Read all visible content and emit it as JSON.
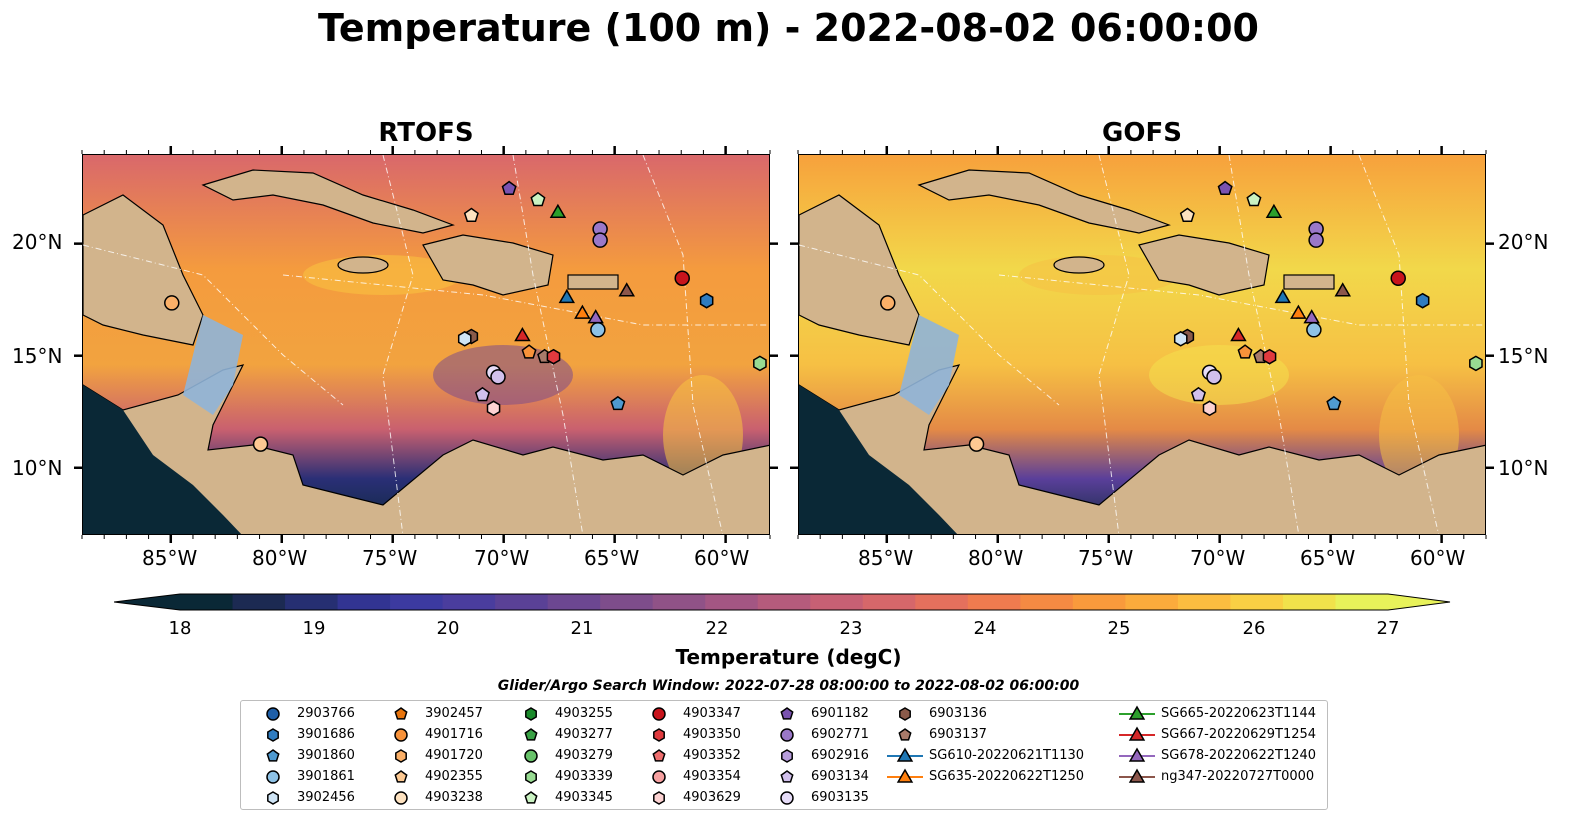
{
  "title": "Temperature (100 m) - 2022-08-02 06:00:00",
  "panels": [
    {
      "title": "RTOFS"
    },
    {
      "title": "GOFS"
    }
  ],
  "axes": {
    "lon_ticks": [
      "85°W",
      "80°W",
      "75°W",
      "70°W",
      "65°W",
      "60°W"
    ],
    "lat_ticks": [
      "20°N",
      "15°N",
      "10°N"
    ]
  },
  "colorbar": {
    "label": "Temperature (degC)",
    "ticks": [
      "18",
      "19",
      "20",
      "21",
      "22",
      "23",
      "24",
      "25",
      "26",
      "27"
    ],
    "colors": [
      "#0a2836",
      "#1c2a52",
      "#262f72",
      "#323492",
      "#3c3aa0",
      "#4a3d9e",
      "#5a4196",
      "#6c4791",
      "#7e4d8b",
      "#905287",
      "#a35683",
      "#b55b7c",
      "#c76074",
      "#d6676a",
      "#e4705d",
      "#ef7b4f",
      "#f58a43",
      "#f99a3c",
      "#fbab3c",
      "#fcbd40",
      "#f9d044",
      "#f1e24b",
      "#e8f25a"
    ]
  },
  "legend": {
    "title": "Glider/Argo Search Window: 2022-07-28 08:00:00 to 2022-08-02 06:00:00",
    "columns": [
      [
        {
          "label": "2903766",
          "marker": "circle",
          "color": "#1f5fa8"
        },
        {
          "label": "3901686",
          "marker": "hexagon",
          "color": "#2f7cc0"
        },
        {
          "label": "3901860",
          "marker": "pentagon",
          "color": "#4f9ad0"
        },
        {
          "label": "3901861",
          "marker": "circle",
          "color": "#8ec2e6"
        },
        {
          "label": "3902456",
          "marker": "hexagon",
          "color": "#cfe4f5"
        }
      ],
      [
        {
          "label": "3902457",
          "marker": "pentagon",
          "color": "#e8740c"
        },
        {
          "label": "4901716",
          "marker": "circle",
          "color": "#f7923a"
        },
        {
          "label": "4901720",
          "marker": "hexagon",
          "color": "#fbb068"
        },
        {
          "label": "4902355",
          "marker": "pentagon",
          "color": "#fdc992"
        },
        {
          "label": "4903238",
          "marker": "circle",
          "color": "#fde2c0"
        }
      ],
      [
        {
          "label": "4903255",
          "marker": "hexagon",
          "color": "#1a8a2b"
        },
        {
          "label": "4903277",
          "marker": "pentagon",
          "color": "#3aa246"
        },
        {
          "label": "4903279",
          "marker": "circle",
          "color": "#68c26a"
        },
        {
          "label": "4903339",
          "marker": "hexagon",
          "color": "#98db92"
        },
        {
          "label": "4903345",
          "marker": "pentagon",
          "color": "#caf2c2"
        }
      ],
      [
        {
          "label": "4903347",
          "marker": "circle",
          "color": "#c8141c"
        },
        {
          "label": "4903350",
          "marker": "hexagon",
          "color": "#e03a3e"
        },
        {
          "label": "4903352",
          "marker": "pentagon",
          "color": "#ee6e6e"
        },
        {
          "label": "4903354",
          "marker": "circle",
          "color": "#f6a0a0"
        },
        {
          "label": "4903629",
          "marker": "hexagon",
          "color": "#fcd2d2"
        }
      ],
      [
        {
          "label": "6901182",
          "marker": "pentagon",
          "color": "#7a52b0"
        },
        {
          "label": "6902771",
          "marker": "circle",
          "color": "#9a78c8"
        },
        {
          "label": "6902916",
          "marker": "hexagon",
          "color": "#b79ddc"
        },
        {
          "label": "6903134",
          "marker": "pentagon",
          "color": "#d1c0ec"
        },
        {
          "label": "6903135",
          "marker": "circle",
          "color": "#e6dcf8"
        }
      ],
      [
        {
          "label": "6903136",
          "marker": "hexagon",
          "color": "#8a5a4a"
        },
        {
          "label": "6903137",
          "marker": "pentagon",
          "color": "#a87a6a"
        },
        {
          "label": "SG610-20220621T1130",
          "marker": "triangle",
          "color": "#1f77b4"
        },
        {
          "label": "SG635-20220622T1250",
          "marker": "triangle",
          "color": "#ff7f0e"
        }
      ],
      [
        {
          "label": "SG665-20220623T1144",
          "marker": "triangle",
          "color": "#2ca02c"
        },
        {
          "label": "SG667-20220629T1254",
          "marker": "triangle",
          "color": "#d62728"
        },
        {
          "label": "SG678-20220622T1240",
          "marker": "triangle",
          "color": "#9467bd"
        },
        {
          "label": "ng347-20220727T0000",
          "marker": "triangle",
          "color": "#8c564b"
        }
      ]
    ]
  },
  "chart_data": {
    "type": "heatmap",
    "title": "Temperature (100 m) - 2022-08-02 06:00:00",
    "variable": "Temperature (degC)",
    "depth": "100 m",
    "datetime": "2022-08-02 06:00:00",
    "models": [
      "RTOFS",
      "GOFS"
    ],
    "extent": {
      "lon": [
        -89,
        -58
      ],
      "lat": [
        7,
        24
      ]
    },
    "colorbar_range": [
      18,
      27
    ],
    "colorbar_extend": "both",
    "x_ticks": [
      -85,
      -80,
      -75,
      -70,
      -65,
      -60
    ],
    "y_ticks": [
      20,
      15,
      10
    ],
    "markers": [
      {
        "id": "3902456",
        "lon": -85.0,
        "lat": 17.4,
        "color": "#fbb068",
        "marker": "circle"
      },
      {
        "id": "4903238",
        "lon": -81.0,
        "lat": 11.1,
        "color": "#fdc992",
        "marker": "circle"
      },
      {
        "id": "3902456",
        "lon": -71.5,
        "lat": 21.3,
        "color": "#fde2c0",
        "marker": "pentagon"
      },
      {
        "id": "6901182",
        "lon": -69.8,
        "lat": 22.5,
        "color": "#7a52b0",
        "marker": "pentagon"
      },
      {
        "id": "4903345",
        "lon": -68.5,
        "lat": 22.0,
        "color": "#caf2c2",
        "marker": "pentagon"
      },
      {
        "id": "SG665-20220623T1144",
        "lon": -67.6,
        "lat": 21.4,
        "color": "#2ca02c",
        "marker": "triangle"
      },
      {
        "id": "6902771",
        "lon": -65.7,
        "lat": 20.7,
        "color": "#9a78c8",
        "marker": "circle"
      },
      {
        "id": "6902771",
        "lon": -65.7,
        "lat": 20.2,
        "color": "#9a78c8",
        "marker": "circle"
      },
      {
        "id": "4903347",
        "lon": -62.0,
        "lat": 18.5,
        "color": "#c8141c",
        "marker": "circle"
      },
      {
        "id": "SG610-20220621T1130",
        "lon": -67.2,
        "lat": 17.6,
        "color": "#1f77b4",
        "marker": "triangle"
      },
      {
        "id": "ng347-20220727T0000",
        "lon": -64.5,
        "lat": 17.9,
        "color": "#8c564b",
        "marker": "triangle"
      },
      {
        "id": "3901686",
        "lon": -60.9,
        "lat": 17.5,
        "color": "#2f7cc0",
        "marker": "hexagon"
      },
      {
        "id": "SG635-20220622T1250",
        "lon": -66.5,
        "lat": 16.9,
        "color": "#ff7f0e",
        "marker": "triangle"
      },
      {
        "id": "SG678-20220622T1240",
        "lon": -65.9,
        "lat": 16.7,
        "color": "#9467bd",
        "marker": "triangle"
      },
      {
        "id": "3901861",
        "lon": -65.8,
        "lat": 16.2,
        "color": "#8ec2e6",
        "marker": "circle"
      },
      {
        "id": "SG667-20220629T1254",
        "lon": -69.2,
        "lat": 15.9,
        "color": "#d62728",
        "marker": "triangle"
      },
      {
        "id": "6903136",
        "lon": -71.5,
        "lat": 15.9,
        "color": "#8a5a4a",
        "marker": "hexagon"
      },
      {
        "id": "3902456",
        "lon": -71.8,
        "lat": 15.8,
        "color": "#cfe4f5",
        "marker": "hexagon"
      },
      {
        "id": "4901716",
        "lon": -68.9,
        "lat": 15.2,
        "color": "#f7923a",
        "marker": "pentagon"
      },
      {
        "id": "6903137",
        "lon": -68.2,
        "lat": 15.0,
        "color": "#a87a6a",
        "marker": "pentagon"
      },
      {
        "id": "4903350",
        "lon": -67.8,
        "lat": 15.0,
        "color": "#e03a3e",
        "marker": "hexagon"
      },
      {
        "id": "6903135",
        "lon": -70.5,
        "lat": 14.3,
        "color": "#e6dcf8",
        "marker": "circle"
      },
      {
        "id": "6903135",
        "lon": -70.3,
        "lat": 14.1,
        "color": "#d1c0ec",
        "marker": "circle"
      },
      {
        "id": "6903134",
        "lon": -71.0,
        "lat": 13.3,
        "color": "#d1c0ec",
        "marker": "pentagon"
      },
      {
        "id": "4903629",
        "lon": -70.5,
        "lat": 12.7,
        "color": "#fcd2d2",
        "marker": "hexagon"
      },
      {
        "id": "3901860",
        "lon": -64.9,
        "lat": 12.9,
        "color": "#4f9ad0",
        "marker": "pentagon"
      },
      {
        "id": "4903339",
        "lon": -58.5,
        "lat": 14.7,
        "color": "#98db92",
        "marker": "hexagon"
      }
    ]
  }
}
